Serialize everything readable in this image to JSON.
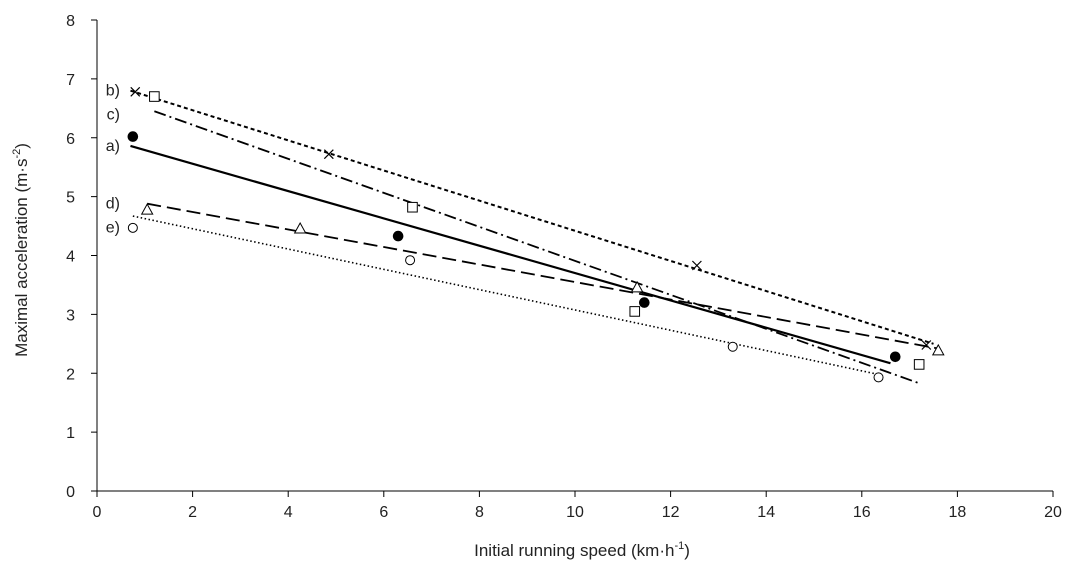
{
  "chart_data": {
    "type": "scatter",
    "title": "",
    "xlabel": "Initial running speed (km·h",
    "xlabel_sup": "-1",
    "xlabel_end": ")",
    "ylabel": "Maximal acceleration (m·s",
    "ylabel_sup": "-2",
    "ylabel_end": ")",
    "xlim": [
      0,
      20
    ],
    "ylim": [
      0,
      8
    ],
    "xticks": [
      0,
      2,
      4,
      6,
      8,
      10,
      12,
      14,
      16,
      18,
      20
    ],
    "yticks": [
      0,
      1,
      2,
      3,
      4,
      5,
      6,
      7,
      8
    ],
    "grid": false,
    "legend": "none",
    "series": [
      {
        "name": "a)",
        "marker": "filled-circle",
        "line_style": "solid",
        "x": [
          0.75,
          6.3,
          11.45,
          16.7
        ],
        "y": [
          6.02,
          4.33,
          3.2,
          2.28
        ],
        "fit": [
          [
            0.7,
            5.86
          ],
          [
            16.6,
            2.17
          ]
        ]
      },
      {
        "name": "b)",
        "marker": "cross",
        "line_style": "dashed-short",
        "x": [
          0.8,
          4.85,
          12.55,
          17.35
        ],
        "y": [
          6.78,
          5.72,
          3.83,
          2.48
        ],
        "fit": [
          [
            0.7,
            6.8
          ],
          [
            17.5,
            2.5
          ]
        ]
      },
      {
        "name": "c)",
        "marker": "open-square",
        "line_style": "dash-dot",
        "x": [
          1.2,
          6.6,
          11.25,
          17.2
        ],
        "y": [
          6.7,
          4.82,
          3.05,
          2.15
        ],
        "fit": [
          [
            1.2,
            6.45
          ],
          [
            17.2,
            1.83
          ]
        ]
      },
      {
        "name": "d)",
        "marker": "open-triangle",
        "line_style": "dashed-long",
        "x": [
          1.05,
          4.25,
          11.3,
          17.6
        ],
        "y": [
          4.77,
          4.45,
          3.45,
          2.38
        ],
        "fit": [
          [
            1.05,
            4.88
          ],
          [
            17.6,
            2.42
          ]
        ]
      },
      {
        "name": "e)",
        "marker": "open-circle",
        "line_style": "dotted",
        "x": [
          0.75,
          6.55,
          13.3,
          16.35
        ],
        "y": [
          4.47,
          3.92,
          2.45,
          1.93
        ],
        "fit": [
          [
            0.75,
            4.67
          ],
          [
            16.35,
            1.98
          ]
        ]
      }
    ]
  }
}
